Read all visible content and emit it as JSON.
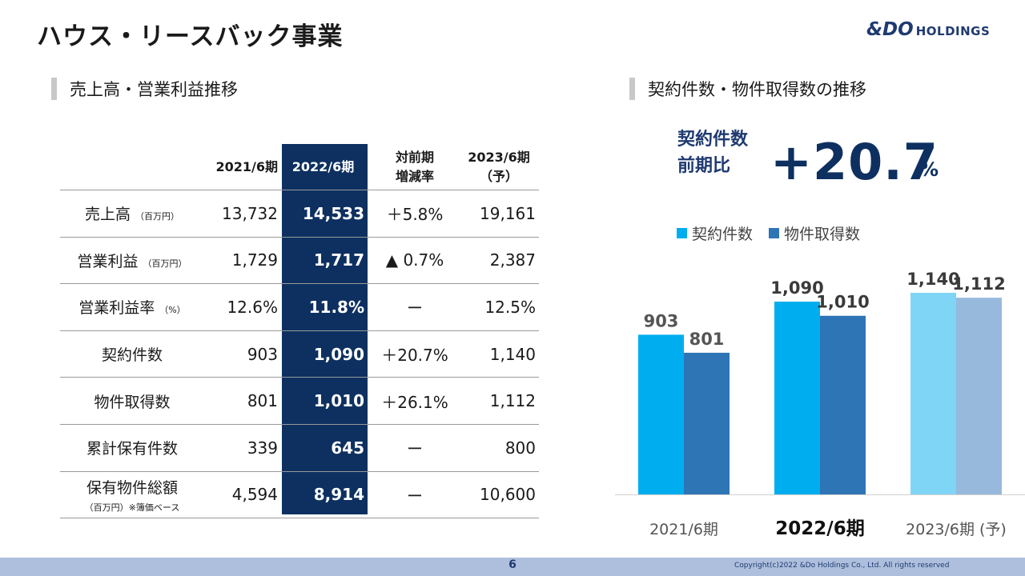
{
  "header": {
    "title": "ハウス・リースバック事業",
    "logo_main": "&DO",
    "logo_sub": "HOLDINGS"
  },
  "left_section": {
    "heading": "売上高・営業利益推移",
    "columns": [
      "2021/6期",
      "2022/6期",
      "対前期\n増減率",
      "2023/6期\n（予）"
    ],
    "rows": [
      {
        "label": "売上高",
        "unit": "（百万円）",
        "sub": "",
        "v2021": "13,732",
        "v2022": "14,533",
        "yoy": "＋5.8%",
        "v2023": "19,161"
      },
      {
        "label": "営業利益",
        "unit": "（百万円）",
        "sub": "",
        "v2021": "1,729",
        "v2022": "1,717",
        "yoy": "▲ 0.7%",
        "v2023": "2,387"
      },
      {
        "label": "営業利益率",
        "unit": "（%）",
        "sub": "",
        "v2021": "12.6%",
        "v2022": "11.8%",
        "yoy": "ー",
        "v2023": "12.5%"
      },
      {
        "label": "契約件数",
        "unit": "",
        "sub": "",
        "v2021": "903",
        "v2022": "1,090",
        "yoy": "＋20.7%",
        "v2023": "1,140"
      },
      {
        "label": "物件取得数",
        "unit": "",
        "sub": "",
        "v2021": "801",
        "v2022": "1,010",
        "yoy": "＋26.1%",
        "v2023": "1,112"
      },
      {
        "label": "累計保有件数",
        "unit": "",
        "sub": "",
        "v2021": "339",
        "v2022": "645",
        "yoy": "ー",
        "v2023": "800"
      },
      {
        "label": "保有物件総額",
        "unit": "",
        "sub": "（百万円）※簿価ベース",
        "v2021": "4,594",
        "v2022": "8,914",
        "yoy": "ー",
        "v2023": "10,600"
      }
    ]
  },
  "right_section": {
    "heading": "契約件数・物件取得数の推移",
    "kpi_label_1": "契約件数",
    "kpi_label_2": "前期比",
    "kpi_value": "+20.7",
    "kpi_unit": "%"
  },
  "chart_data": {
    "type": "bar",
    "categories": [
      "2021/6期",
      "2022/6期",
      "2023/6期 (予)"
    ],
    "highlight_category": "2022/6期",
    "series": [
      {
        "name": "契約件数",
        "values": [
          903,
          1090,
          1140
        ],
        "labels": [
          "903",
          "1,090",
          "1,140"
        ],
        "color": "#00aeef",
        "forecast_color": "#7fd5f6"
      },
      {
        "name": "物件取得数",
        "values": [
          801,
          1010,
          1112
        ],
        "labels": [
          "801",
          "1,010",
          "1,112"
        ],
        "color": "#2e75b6",
        "forecast_color": "#97b9dc"
      }
    ],
    "ylim": [
      0,
      1140
    ],
    "grid": false,
    "legend": "top-left"
  },
  "footer": {
    "page": "6",
    "copyright": "Copyright(c)2022 &Do Holdings Co., Ltd. All rights reserved"
  },
  "colors": {
    "highlight_column": "#0d3060",
    "accent": "#1f3a70",
    "footer_bar": "#adbfdd"
  }
}
